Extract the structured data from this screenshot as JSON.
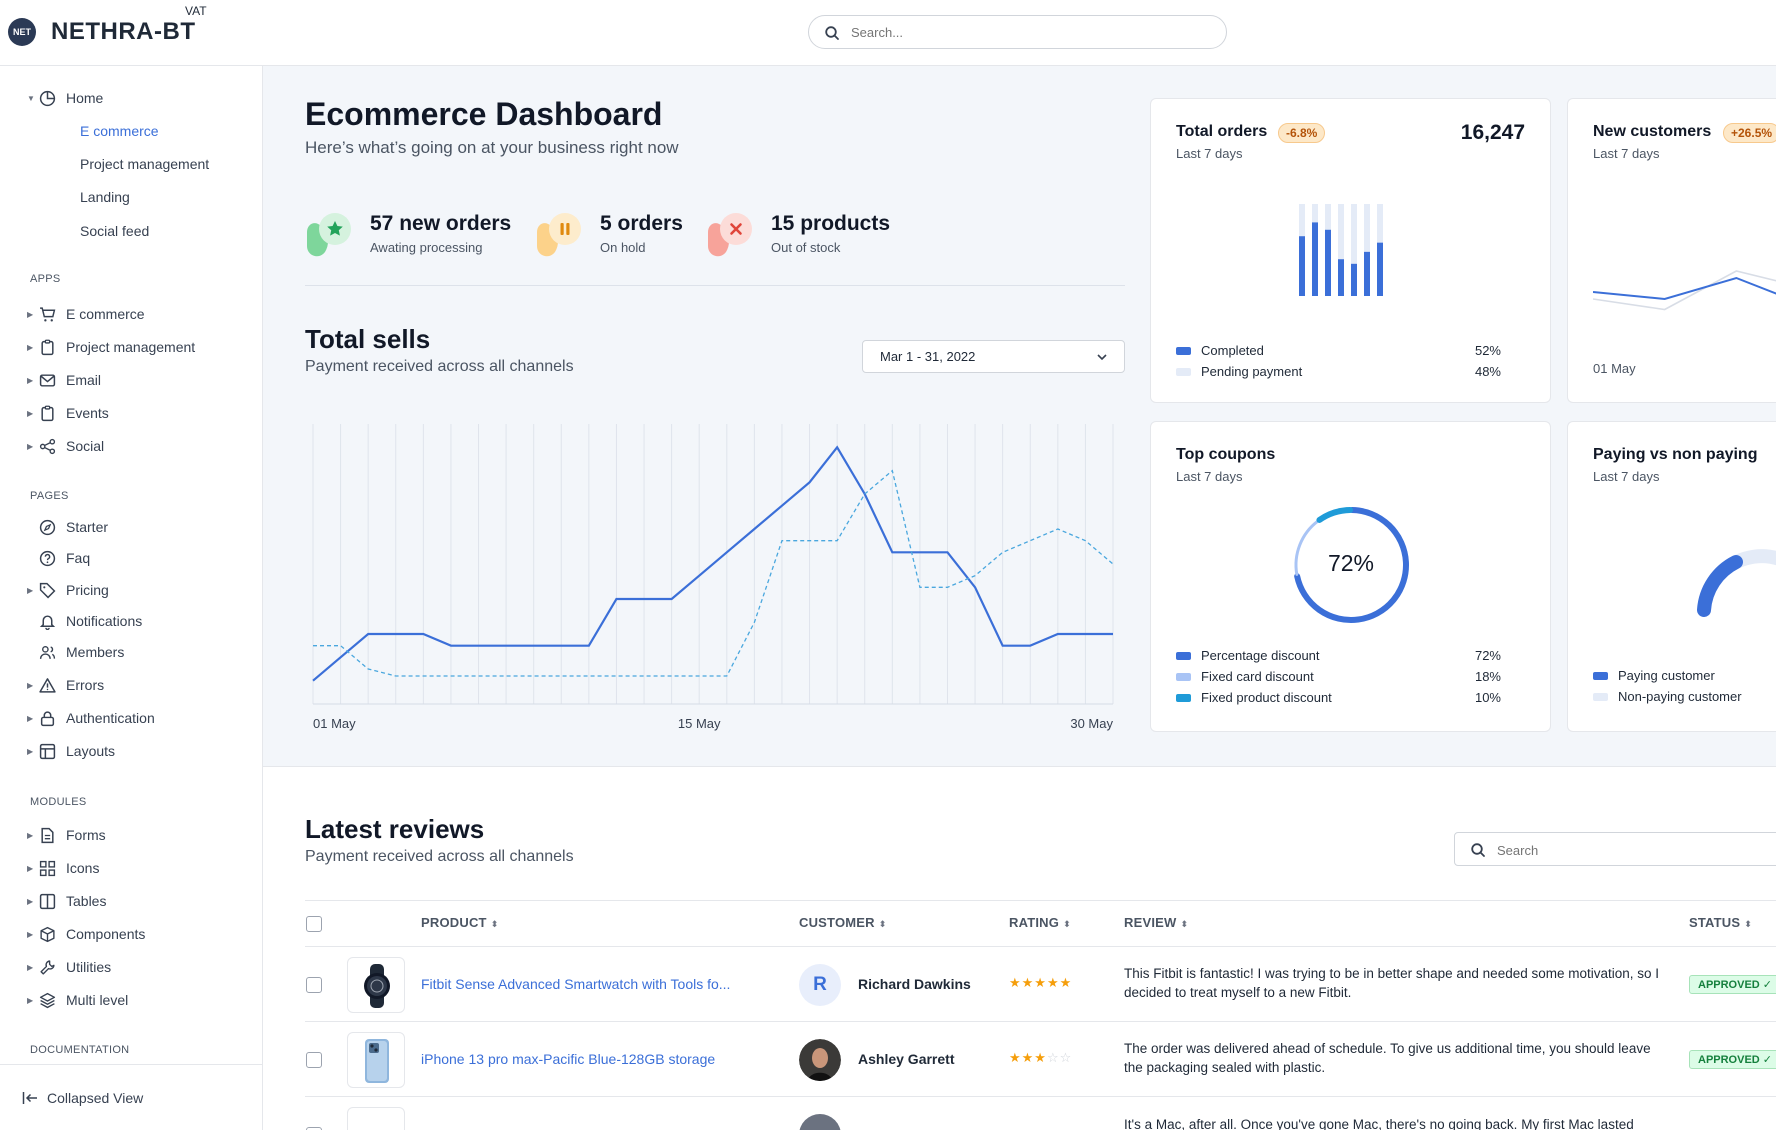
{
  "topbar": {
    "brand": "NETHRA-BT",
    "brand_superscript": "VAT",
    "logo_text": "NET",
    "search_placeholder": "Search..."
  },
  "sidebar": {
    "home": {
      "label": "Home",
      "icon": "pie-chart-icon",
      "children": [
        "E commerce",
        "Project management",
        "Landing",
        "Social feed"
      ],
      "active_child": "E commerce"
    },
    "sections": {
      "apps": "APPS",
      "pages": "PAGES",
      "modules": "MODULES",
      "documentation": "DOCUMENTATION"
    },
    "apps": [
      {
        "label": "E commerce",
        "icon": "cart-icon"
      },
      {
        "label": "Project management",
        "icon": "clipboard-icon"
      },
      {
        "label": "Email",
        "icon": "mail-icon"
      },
      {
        "label": "Events",
        "icon": "clipboard-icon"
      },
      {
        "label": "Social",
        "icon": "share-icon"
      }
    ],
    "pages": [
      {
        "label": "Starter",
        "icon": "compass-icon"
      },
      {
        "label": "Faq",
        "icon": "question-icon"
      },
      {
        "label": "Pricing",
        "icon": "tag-icon"
      },
      {
        "label": "Notifications",
        "icon": "bell-icon"
      },
      {
        "label": "Members",
        "icon": "users-icon"
      },
      {
        "label": "Errors",
        "icon": "warning-icon"
      },
      {
        "label": "Authentication",
        "icon": "lock-icon"
      },
      {
        "label": "Layouts",
        "icon": "layout-icon"
      }
    ],
    "modules": [
      {
        "label": "Forms",
        "icon": "file-text-icon"
      },
      {
        "label": "Icons",
        "icon": "grid-icon"
      },
      {
        "label": "Tables",
        "icon": "columns-icon"
      },
      {
        "label": "Components",
        "icon": "package-icon"
      },
      {
        "label": "Utilities",
        "icon": "tool-icon"
      },
      {
        "label": "Multi level",
        "icon": "layers-icon"
      }
    ],
    "collapsed_label": "Collapsed View"
  },
  "dashboard": {
    "title": "Ecommerce Dashboard",
    "subtitle": "Here’s what’s going on at your business right now",
    "stats": [
      {
        "value": "57 new orders",
        "label": "Awating processing",
        "color": "#7ed69b",
        "icon": "star-icon"
      },
      {
        "value": "5 orders",
        "label": "On hold",
        "color": "#fcd28a",
        "icon": "pause-icon"
      },
      {
        "value": "15 products",
        "label": "Out of stock",
        "color": "#f7a39a",
        "icon": "x-icon"
      }
    ]
  },
  "total_sells": {
    "title": "Total sells",
    "subtitle": "Payment received across all channels",
    "date_range": "Mar 1 - 31, 2022",
    "chart_data": {
      "type": "line",
      "x": [
        1,
        2,
        3,
        4,
        5,
        6,
        7,
        8,
        9,
        10,
        11,
        12,
        13,
        14,
        15,
        16,
        17,
        18,
        19,
        20,
        21,
        22,
        23,
        24,
        25,
        26,
        27,
        28,
        29,
        30
      ],
      "x_tick_labels": [
        "01 May",
        "15 May",
        "30 May"
      ],
      "series": [
        {
          "style": "solid",
          "color": "#3b6fd8",
          "values": [
            10,
            20,
            30,
            30,
            30,
            25,
            25,
            25,
            25,
            25,
            25,
            45,
            45,
            45,
            55,
            65,
            75,
            85,
            95,
            110,
            90,
            65,
            65,
            65,
            50,
            25,
            25,
            30,
            30,
            30
          ]
        },
        {
          "style": "dashed",
          "color": "#4aa7de",
          "values": [
            25,
            25,
            15,
            12,
            12,
            12,
            12,
            12,
            12,
            12,
            12,
            12,
            12,
            12,
            12,
            12,
            35,
            70,
            70,
            70,
            90,
            100,
            50,
            50,
            55,
            65,
            70,
            75,
            70,
            60
          ]
        }
      ],
      "grid": true
    }
  },
  "cards": {
    "total_orders": {
      "title": "Total orders",
      "badge": "-6.8%",
      "period": "Last 7 days",
      "value": "16,247",
      "chart_data": {
        "type": "bar",
        "series": [
          {
            "name": "Completed",
            "values": [
              65,
              80,
              72,
              40,
              35,
              48,
              58
            ]
          },
          {
            "name": "Pending payment",
            "values": [
              35,
              20,
              28,
              60,
              65,
              52,
              42
            ]
          }
        ]
      },
      "legend": [
        {
          "label": "Completed",
          "value": "52%",
          "color": "#3b6fd8"
        },
        {
          "label": "Pending payment",
          "value": "48%",
          "color": "#e4ebf7"
        }
      ]
    },
    "new_customers": {
      "title": "New customers",
      "badge": "+26.5%",
      "period": "Last 7 days",
      "x_label": "01 May",
      "chart_data": {
        "type": "line",
        "series": [
          {
            "values": [
              12,
              10,
              16,
              8
            ]
          },
          {
            "values": [
              10,
              7,
              18,
              13
            ]
          }
        ]
      }
    },
    "top_coupons": {
      "title": "Top coupons",
      "period": "Last 7 days",
      "center_label": "72%",
      "chart_data": {
        "type": "pie",
        "categories": [
          "Percentage discount",
          "Fixed card discount",
          "Fixed product discount"
        ],
        "values": [
          72,
          18,
          10
        ]
      },
      "legend": [
        {
          "label": "Percentage discount",
          "value": "72%",
          "color": "#3b6fd8"
        },
        {
          "label": "Fixed card discount",
          "value": "18%",
          "color": "#a9c4f5"
        },
        {
          "label": "Fixed product discount",
          "value": "10%",
          "color": "#1f9bd8"
        }
      ]
    },
    "paying": {
      "title": "Paying vs non paying",
      "period": "Last 7 days",
      "chart_data": {
        "type": "pie",
        "categories": [
          "Paying customer",
          "Non-paying customer"
        ]
      },
      "legend": [
        {
          "label": "Paying customer",
          "color": "#3b6fd8"
        },
        {
          "label": "Non-paying customer",
          "color": "#e4ebf7"
        }
      ]
    }
  },
  "reviews": {
    "title": "Latest reviews",
    "subtitle": "Payment received across all channels",
    "search_placeholder": "Search",
    "columns": [
      "PRODUCT",
      "CUSTOMER",
      "RATING",
      "REVIEW",
      "STATUS"
    ],
    "rows": [
      {
        "product": "Fitbit Sense Advanced Smartwatch with Tools fo...",
        "customer": "Richard Dawkins",
        "avatar_initial": "R",
        "rating": 5,
        "review": "This Fitbit is fantastic! I was trying to be in better shape and needed some motivation, so I decided to treat myself to a new Fitbit.",
        "status": "APPROVED ✓"
      },
      {
        "product": "iPhone 13 pro max-Pacific Blue-128GB storage",
        "customer": "Ashley Garrett",
        "avatar_initial": "",
        "rating": 3,
        "review": "The order was delivered ahead of schedule. To give us additional time, you should leave the packaging sealed with plastic.",
        "status": "APPROVED ✓"
      },
      {
        "review": "It's a Mac, after all. Once you've gone Mac, there's no going back. My first Mac lasted"
      }
    ]
  }
}
